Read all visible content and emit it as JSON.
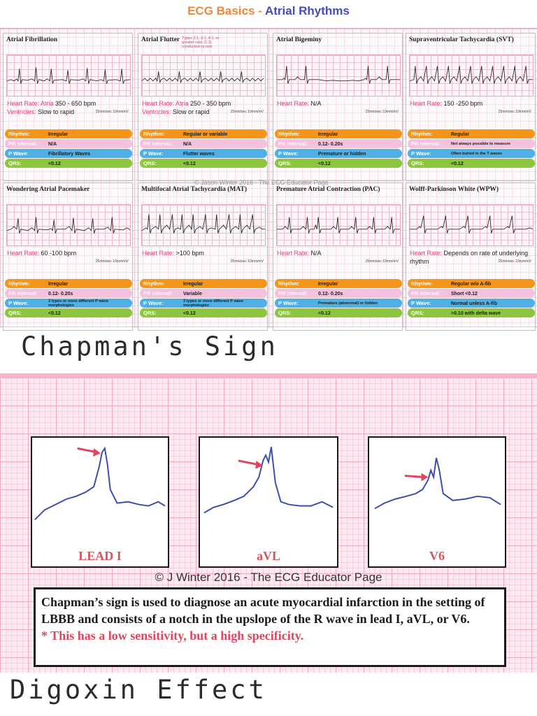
{
  "header": {
    "title_part1": "ECG Basics",
    "title_sep": " - ",
    "title_part2": "Atrial Rhythms"
  },
  "legend_labels": {
    "heart_rate": "Heart Rate:",
    "rhythm": "Rhythm:",
    "pr_interval": "PR Interval:",
    "p_wave": "P Wave:",
    "qrs": "QRS:"
  },
  "paper_speed": "25mm/sec 10mm/mV",
  "cards": [
    {
      "title": "Atrial Fibrillation",
      "note": "",
      "rate_line1_label": "Heart Rate: Atria",
      "rate_line1_value": "350 - 650 bpm",
      "rate_line2_label": "Ventricles:",
      "rate_line2_value": "Slow to rapid",
      "rhythm": "Irregular",
      "pr": "N/A",
      "pwave": "Fibrillatory Waves",
      "qrs": "<0.12"
    },
    {
      "title": "Atrial Flutter",
      "note": "Types 2:1, 3:1, 4:1, or greater ratio (1:1) conduction is rare",
      "rate_line1_label": "Heart Rate: Atria",
      "rate_line1_value": "250 - 350 bpm",
      "rate_line2_label": "Ventricles:",
      "rate_line2_value": "Slow or rapid",
      "rhythm": "Regular or variable",
      "pr": "N/A",
      "pwave": "Flutter waves",
      "qrs": "<0.12"
    },
    {
      "title": "Atrial Bigeminy",
      "note": "",
      "rate_line1_label": "Heart Rate:",
      "rate_line1_value": "N/A",
      "rate_line2_label": "",
      "rate_line2_value": "",
      "rhythm": "Irregular",
      "pr": "0.12- 0.20s",
      "pwave": "Premature or hidden",
      "qrs": "<0.12"
    },
    {
      "title": "Supraventricular Tachycardia (SVT)",
      "note": "",
      "rate_line1_label": "Heart Rate:",
      "rate_line1_value": "150 -250 bpm",
      "rate_line2_label": "",
      "rate_line2_value": "",
      "rhythm": "Regular",
      "pr": "Not always possible to measure",
      "pwave": "Often buried in the T waves",
      "qrs": "<0.12"
    },
    {
      "title": "Wondering Atrial Pacemaker",
      "note": "",
      "rate_line1_label": "Heart Rate:",
      "rate_line1_value": "60 -100 bpm",
      "rate_line2_label": "",
      "rate_line2_value": "",
      "rhythm": "Irregular",
      "pr": "0.12- 0.20s",
      "pwave": "3 types or more different P wave morphologies",
      "qrs": "<0.12"
    },
    {
      "title": "Multifocal Atrial Tachycardia (MAT)",
      "note": "",
      "rate_line1_label": "Heart Rate:",
      "rate_line1_value": ">100 bpm",
      "rate_line2_label": "",
      "rate_line2_value": "",
      "rhythm": "Irregular",
      "pr": "Variable",
      "pwave": "3 types or more different P wave morphologies",
      "qrs": "<0.12"
    },
    {
      "title": "Premature Atrial Contraction (PAC)",
      "note": "",
      "rate_line1_label": "Heart Rate:",
      "rate_line1_value": "N/A",
      "rate_line2_label": "",
      "rate_line2_value": "",
      "rhythm": "Irregular",
      "pr": "0.12- 0.20s",
      "pwave": "Premature (abnormal) or hidden",
      "qrs": "<0.12"
    },
    {
      "title": "Wolff-Parkinson White (WPW)",
      "note": "",
      "rate_line1_label": "Heart Rate:",
      "rate_line1_value": "Depends on rate of underlying rhythm",
      "rate_line2_label": "",
      "rate_line2_value": "",
      "rhythm": "Regular w/o A-fib",
      "pr": "Short <0.12",
      "pwave": "Normal unless A-fib",
      "qrs": ">0.10 with delta wave"
    }
  ],
  "sheet_watermark": "© Jason Winter 2016 - The ECG Educator Page",
  "heading_chapman": "Chapman's Sign",
  "leads": [
    {
      "label": "LEAD I"
    },
    {
      "label": "aVL"
    },
    {
      "label": "V6"
    }
  ],
  "chapman_copyright": "© J Winter 2016 - The ECG Educator Page",
  "chapman_desc": "Chapman’s sign is used to diagnose an acute myocardial infarction in the setting of LBBB and consists of a notch in the upslope of the R wave in lead I, aVL, or V6.",
  "chapman_note": "* This has a low sensitivity, but a high specificity.",
  "heading_digoxin": "Digoxin Effect",
  "colors": {
    "orange": "#f5961a",
    "pink": "#f4c2dc",
    "blue": "#4fb0e6",
    "green": "#8cc63e",
    "arrow_red": "#e0455e",
    "trace_blue": "#3a4bb0"
  }
}
